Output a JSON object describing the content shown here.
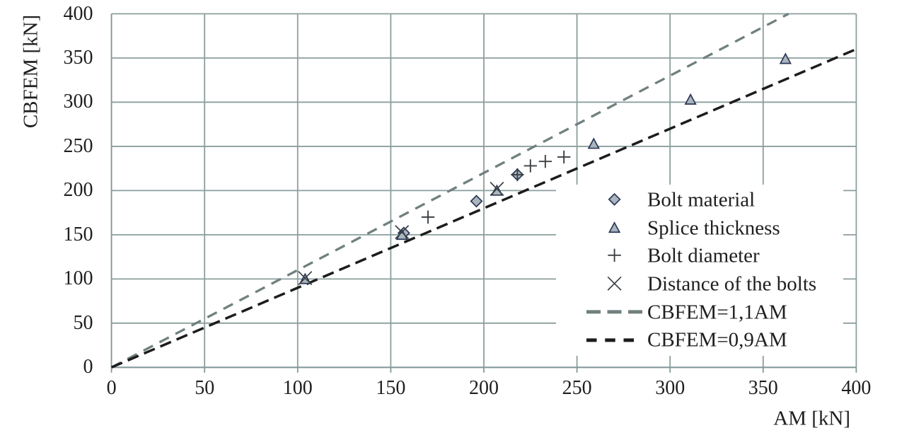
{
  "chart_data": {
    "type": "scatter",
    "title": "",
    "xlabel": "AM [kN]",
    "ylabel": "CBFEM [kN]",
    "xlim": [
      0,
      400
    ],
    "ylim": [
      0,
      400
    ],
    "xticks": [
      0,
      50,
      100,
      150,
      200,
      250,
      300,
      350,
      400
    ],
    "yticks": [
      0,
      50,
      100,
      150,
      200,
      250,
      300,
      350,
      400
    ],
    "grid": true,
    "legend_position": "inside lower right",
    "series": [
      {
        "name": "Bolt material",
        "marker": "diamond",
        "points": [
          [
            157,
            152
          ],
          [
            196,
            188
          ],
          [
            218,
            218
          ]
        ]
      },
      {
        "name": "Splice thickness",
        "marker": "triangle",
        "points": [
          [
            104,
            100
          ],
          [
            156,
            150
          ],
          [
            207,
            200
          ],
          [
            259,
            253
          ],
          [
            311,
            303
          ],
          [
            362,
            349
          ]
        ]
      },
      {
        "name": "Bolt diameter",
        "marker": "plus",
        "points": [
          [
            170,
            170
          ],
          [
            218,
            218
          ],
          [
            225,
            228
          ],
          [
            233,
            233
          ],
          [
            243,
            238
          ]
        ]
      },
      {
        "name": "Distance of the bolts",
        "marker": "x",
        "points": [
          [
            104,
            101
          ],
          [
            156,
            153
          ],
          [
            207,
            202
          ]
        ]
      }
    ],
    "lines": [
      {
        "name": "CBFEM=1,1AM",
        "slope": 1.1,
        "intercept": 0
      },
      {
        "name": "CBFEM=0,9AM",
        "slope": 0.9,
        "intercept": 0
      }
    ],
    "colors": {
      "grid": "#8b9e9d",
      "axis": "#84989a",
      "marker_fill": "#a9b6bf",
      "marker_stroke": "#2b3655",
      "cross_stroke": "#3c4043",
      "line_1_1": "#70807f",
      "line_0_9": "#1c1c1c",
      "text": "#1f1f1f",
      "background": "#ffffff"
    }
  }
}
